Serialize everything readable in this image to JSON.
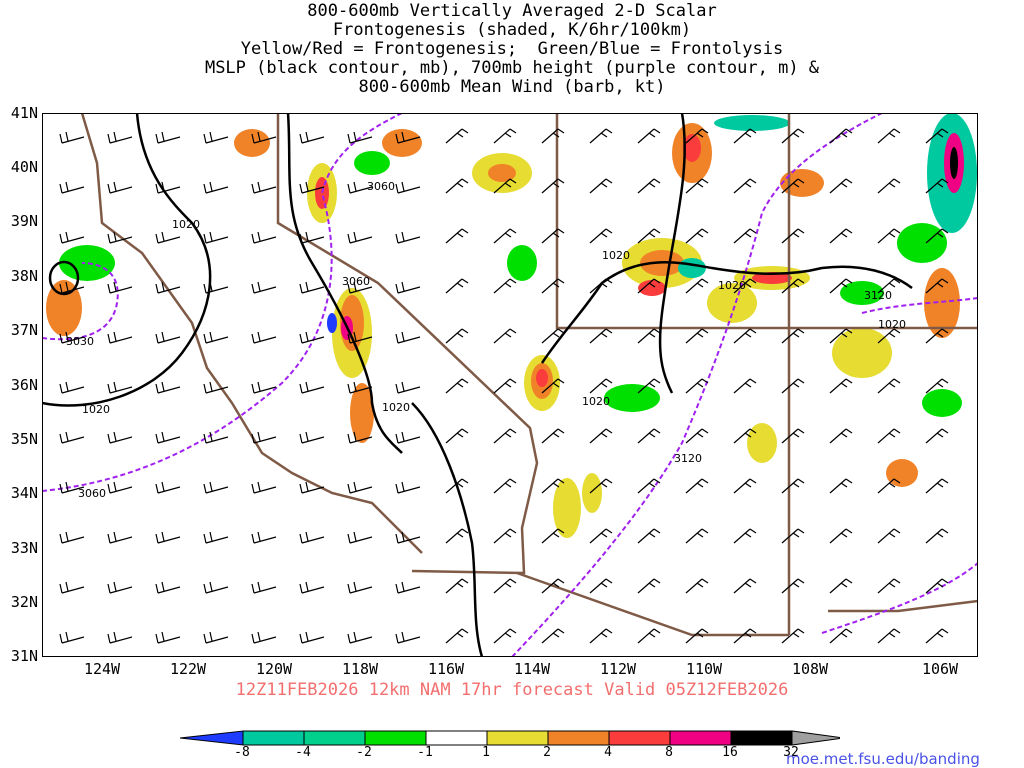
{
  "title": {
    "line1": "800-600mb Vertically Averaged 2-D Scalar",
    "line2": "Frontogenesis (shaded, K/6hr/100km)",
    "line3": "Yellow/Red = Frontogenesis;  Green/Blue = Frontolysis",
    "line4": "MSLP (black contour, mb), 700mb height (purple contour, m) &",
    "line5": "800-600mb Mean Wind (barb, kt)"
  },
  "axes": {
    "lat_labels": [
      "41N",
      "40N",
      "39N",
      "38N",
      "37N",
      "36N",
      "35N",
      "34N",
      "33N",
      "32N",
      "31N"
    ],
    "lon_labels": [
      "124W",
      "122W",
      "120W",
      "118W",
      "116W",
      "114W",
      "112W",
      "110W",
      "108W",
      "106W"
    ]
  },
  "contour_labels": {
    "mslp": [
      "1020",
      "1020",
      "1020",
      "1020",
      "1020",
      "1020",
      "1020"
    ],
    "height": [
      "3030",
      "3060",
      "3060",
      "3060",
      "3120",
      "3120"
    ]
  },
  "valid_line": "12Z11FEB2026 12km NAM 17hr forecast Valid 05Z12FEB2026",
  "colorbar": {
    "labels": [
      "-8",
      "-4",
      "-2",
      "-1",
      "1",
      "2",
      "4",
      "8",
      "16",
      "32"
    ],
    "colors": [
      "#1e3cff",
      "#00c9a0",
      "#00d08c",
      "#00e000",
      "#ffffff",
      "#e6dc32",
      "#f08228",
      "#fa3c3c",
      "#f00082",
      "#000000",
      "#a0a0a0"
    ]
  },
  "credit": "moe.met.fsu.edu/banding",
  "colors": {
    "mslp_contour": "#000000",
    "height_contour": "#a020f0",
    "boundaries": "#7f5a46",
    "valid_text": "#f36e6e",
    "credit_text": "#4a52e6"
  }
}
